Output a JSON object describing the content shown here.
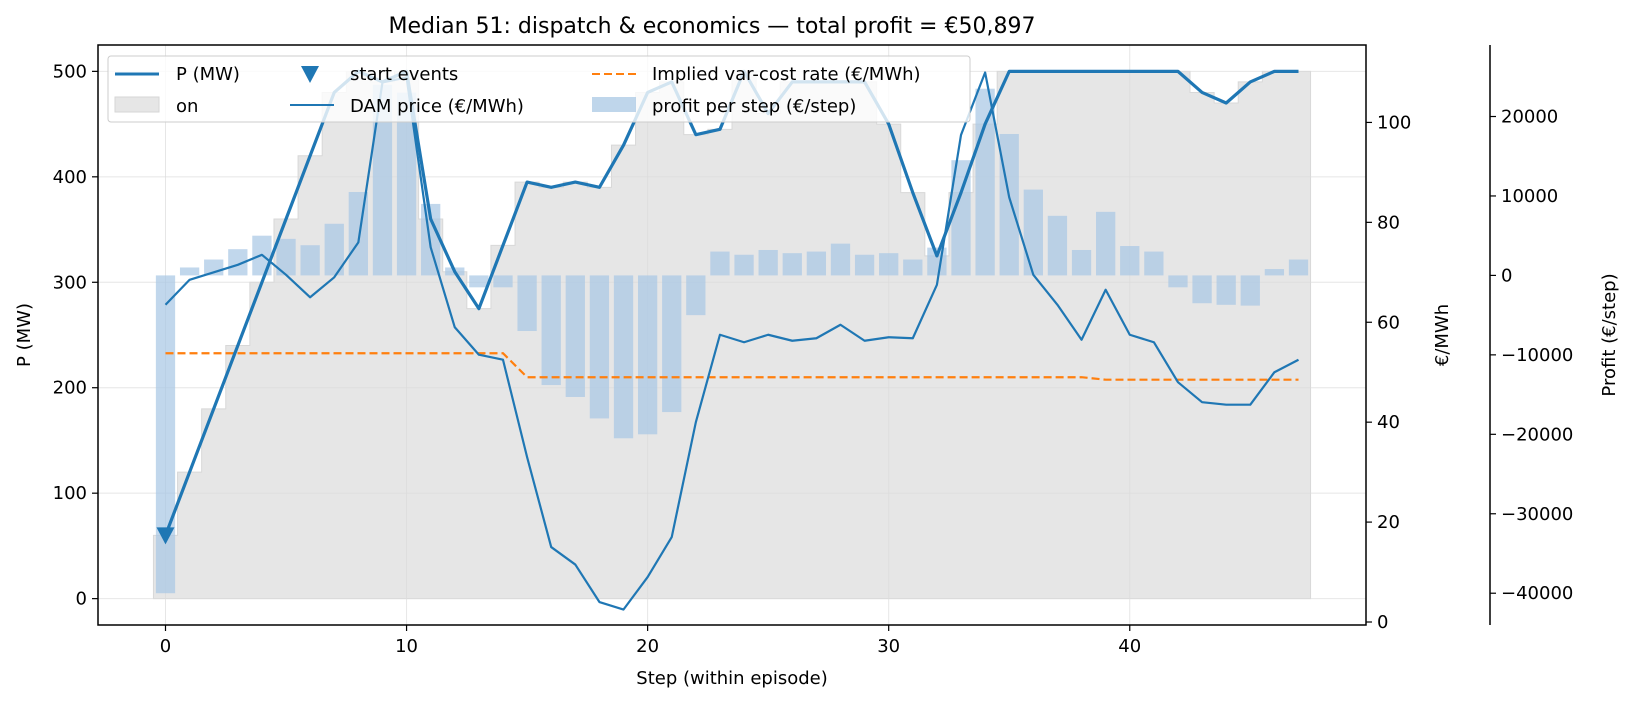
{
  "chart_data": {
    "type": "line",
    "title": "Median 51: dispatch & economics — total profit = €50,897",
    "xlabel": "Step (within episode)",
    "ylabel_left": "P (MW)",
    "ylabel_right": "€/MWh",
    "ylabel_profit": "Profit (€/step)",
    "xlim": [
      -2.8,
      49.8
    ],
    "ylim_power": [
      -25,
      525
    ],
    "ylim_price": [
      -0.6,
      115.5
    ],
    "ylim_profit": [
      -44000,
      29000
    ],
    "x_ticks": [
      0,
      10,
      20,
      30,
      40
    ],
    "power_ticks": [
      0,
      100,
      200,
      300,
      400,
      500
    ],
    "price_ticks": [
      0,
      20,
      40,
      60,
      80,
      100
    ],
    "profit_ticks": [
      -40000,
      -30000,
      -20000,
      -10000,
      0,
      10000,
      20000
    ],
    "grid": true,
    "legend_position": "top-left",
    "legend": {
      "power": "P (MW)",
      "on": "on",
      "start": "start events",
      "price": "DAM price (€/MWh)",
      "varcost": "Implied var-cost rate (€/MWh)",
      "profit": "profit per step (€/step)"
    },
    "colors": {
      "power": "#1f77b4",
      "price": "#1f77b4",
      "varcost": "#ff7f0e",
      "profit": "#a9c8e4",
      "on": "#e6e6e6",
      "grid": "#dcdcdc"
    },
    "x": [
      0,
      1,
      2,
      3,
      4,
      5,
      6,
      7,
      8,
      9,
      10,
      11,
      12,
      13,
      14,
      15,
      16,
      17,
      18,
      19,
      20,
      21,
      22,
      23,
      24,
      25,
      26,
      27,
      28,
      29,
      30,
      31,
      32,
      33,
      34,
      35,
      36,
      37,
      38,
      39,
      40,
      41,
      42,
      43,
      44,
      45,
      46,
      47
    ],
    "series": [
      {
        "name": "P (MW)",
        "axis": "power",
        "values": [
          60,
          120,
          180,
          240,
          300,
          360,
          420,
          480,
          500,
          490,
          500,
          360,
          310,
          275,
          335,
          395,
          390,
          395,
          390,
          430,
          480,
          490,
          440,
          445,
          500,
          460,
          490,
          490,
          490,
          490,
          450,
          385,
          325,
          385,
          450,
          500,
          500,
          500,
          500,
          500,
          500,
          500,
          500,
          480,
          470,
          490,
          500,
          500
        ]
      },
      {
        "name": "DAM price (€/MWh)",
        "axis": "price",
        "values": [
          63.5,
          68.5,
          70,
          71.5,
          73.5,
          69.5,
          65,
          69,
          76,
          108,
          109,
          75,
          59,
          53.5,
          52.5,
          33,
          15,
          11.5,
          4,
          2.5,
          9,
          17,
          40,
          57.5,
          56,
          57.5,
          56.3,
          56.8,
          59.5,
          56.3,
          57,
          56.8,
          67.5,
          97.5,
          110,
          85,
          69.5,
          63.5,
          56.5,
          66.5,
          57.5,
          56,
          48,
          44,
          43.5,
          43.5,
          50,
          52.5
        ]
      },
      {
        "name": "Implied var-cost rate (€/MWh)",
        "axis": "price",
        "values": [
          53.8,
          53.8,
          53.8,
          53.8,
          53.8,
          53.8,
          53.8,
          53.8,
          53.8,
          53.8,
          53.8,
          53.8,
          53.8,
          53.8,
          53.8,
          49,
          49,
          49,
          49,
          49,
          49,
          49,
          49,
          49,
          49,
          49,
          49,
          49,
          49,
          49,
          49,
          49,
          49,
          49,
          49,
          49,
          49,
          49,
          49,
          48.5,
          48.5,
          48.5,
          48.5,
          48.5,
          48.5,
          48.5,
          48.5,
          48.5
        ]
      },
      {
        "name": "profit per step (€/step)",
        "axis": "profit",
        "type": "bar",
        "values": [
          -40000,
          1000,
          2000,
          3300,
          5000,
          4600,
          3800,
          6500,
          10500,
          24000,
          23000,
          9000,
          1000,
          -1500,
          -1500,
          -7000,
          -13800,
          -15300,
          -18000,
          -20500,
          -20000,
          -17200,
          -5000,
          3000,
          2600,
          3200,
          2800,
          3000,
          4000,
          2600,
          2800,
          2000,
          3500,
          14500,
          23500,
          17800,
          10800,
          7500,
          3200,
          8000,
          3700,
          3000,
          -1500,
          -3500,
          -3700,
          -3800,
          800,
          2000
        ]
      },
      {
        "name": "start events",
        "axis": "power",
        "type": "scatter",
        "x": [
          0
        ],
        "values": [
          60
        ]
      }
    ]
  }
}
